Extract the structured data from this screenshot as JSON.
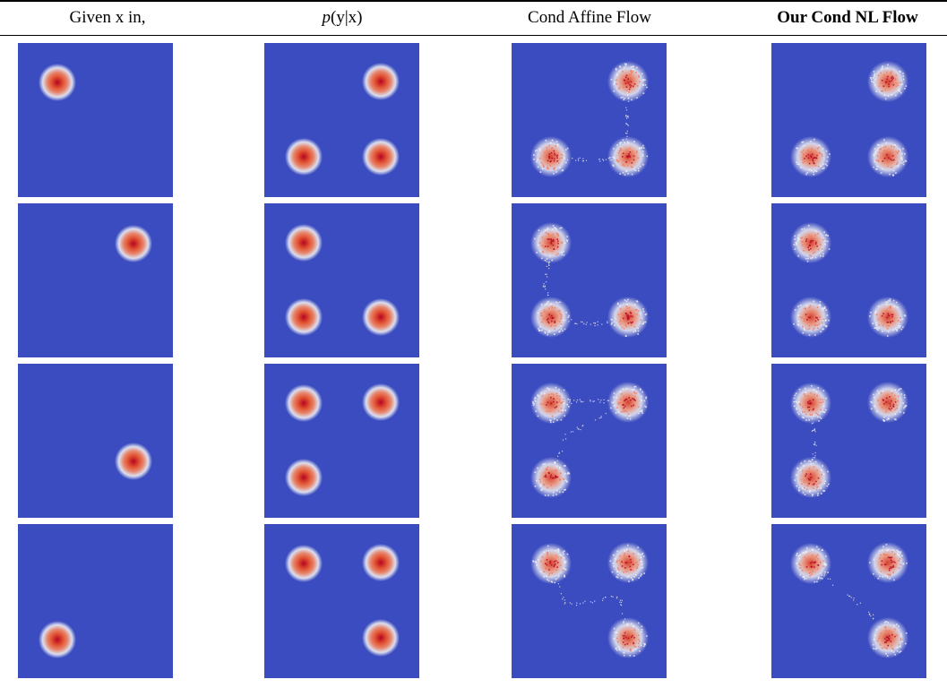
{
  "headers": [
    {
      "label": "Given x in,",
      "bold": false
    },
    {
      "prefix": "p",
      "label": "(y|x)",
      "bold": false
    },
    {
      "label": "Cond Affine Flow",
      "bold": false
    },
    {
      "label": "Our Cond NL Flow",
      "bold": true
    }
  ],
  "colors": {
    "background": "#3b4cc0",
    "blob_center": "#b40426",
    "blob_mid": "#f08a6a",
    "halo": "#f7f7f7",
    "divider": "#000000"
  },
  "rows": [
    {
      "given": [
        "top-left"
      ],
      "true": [
        "top-right",
        "bottom-left",
        "bottom-right"
      ],
      "affine": [
        "top-right",
        "bottom-left",
        "bottom-right"
      ],
      "nl": [
        "top-right",
        "bottom-left",
        "bottom-right"
      ]
    },
    {
      "given": [
        "top-right-inner"
      ],
      "true": [
        "top-left",
        "bottom-left",
        "bottom-right"
      ],
      "affine": [
        "top-left",
        "bottom-left",
        "bottom-right"
      ],
      "nl": [
        "top-left",
        "bottom-left",
        "bottom-right"
      ]
    },
    {
      "given": [
        "bottom-right"
      ],
      "true": [
        "top-left",
        "top-right",
        "bottom-left"
      ],
      "affine": [
        "top-left",
        "top-right",
        "bottom-left"
      ],
      "nl": [
        "top-left",
        "top-right",
        "bottom-left"
      ]
    },
    {
      "given": [
        "bottom-left"
      ],
      "true": [
        "top-left",
        "top-right",
        "bottom-right"
      ],
      "affine": [
        "top-left",
        "top-right",
        "bottom-right"
      ],
      "nl": [
        "top-left",
        "top-right",
        "bottom-right"
      ]
    }
  ]
}
